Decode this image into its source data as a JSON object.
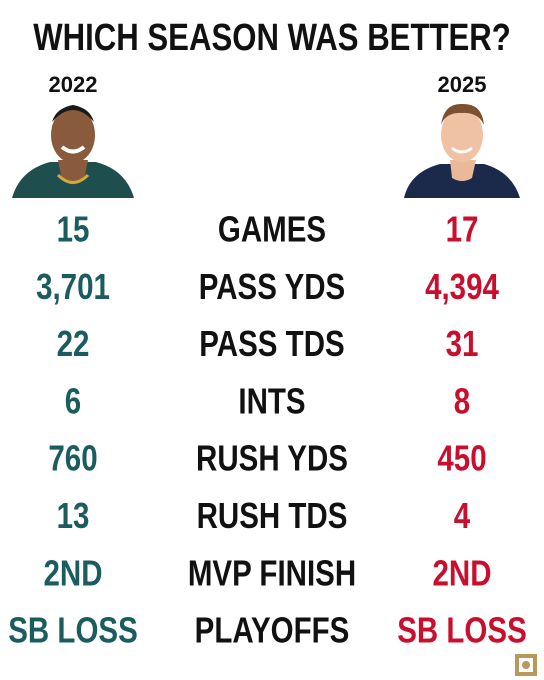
{
  "title": "WHICH SEASON WAS BETTER?",
  "left_year": "2022",
  "right_year": "2025",
  "rows": [
    {
      "label": "GAMES",
      "left": "15",
      "right": "17"
    },
    {
      "label": "PASS YDS",
      "left": "3,701",
      "right": "4,394"
    },
    {
      "label": "PASS TDS",
      "left": "22",
      "right": "31"
    },
    {
      "label": "INTS",
      "left": "6",
      "right": "8"
    },
    {
      "label": "RUSH YDS",
      "left": "760",
      "right": "450"
    },
    {
      "label": "RUSH TDS",
      "left": "13",
      "right": "4"
    },
    {
      "label": "MVP FINISH",
      "left": "2ND",
      "right": "2ND"
    },
    {
      "label": "PLAYOFFS",
      "left": "SB LOSS",
      "right": "SB LOSS"
    }
  ]
}
